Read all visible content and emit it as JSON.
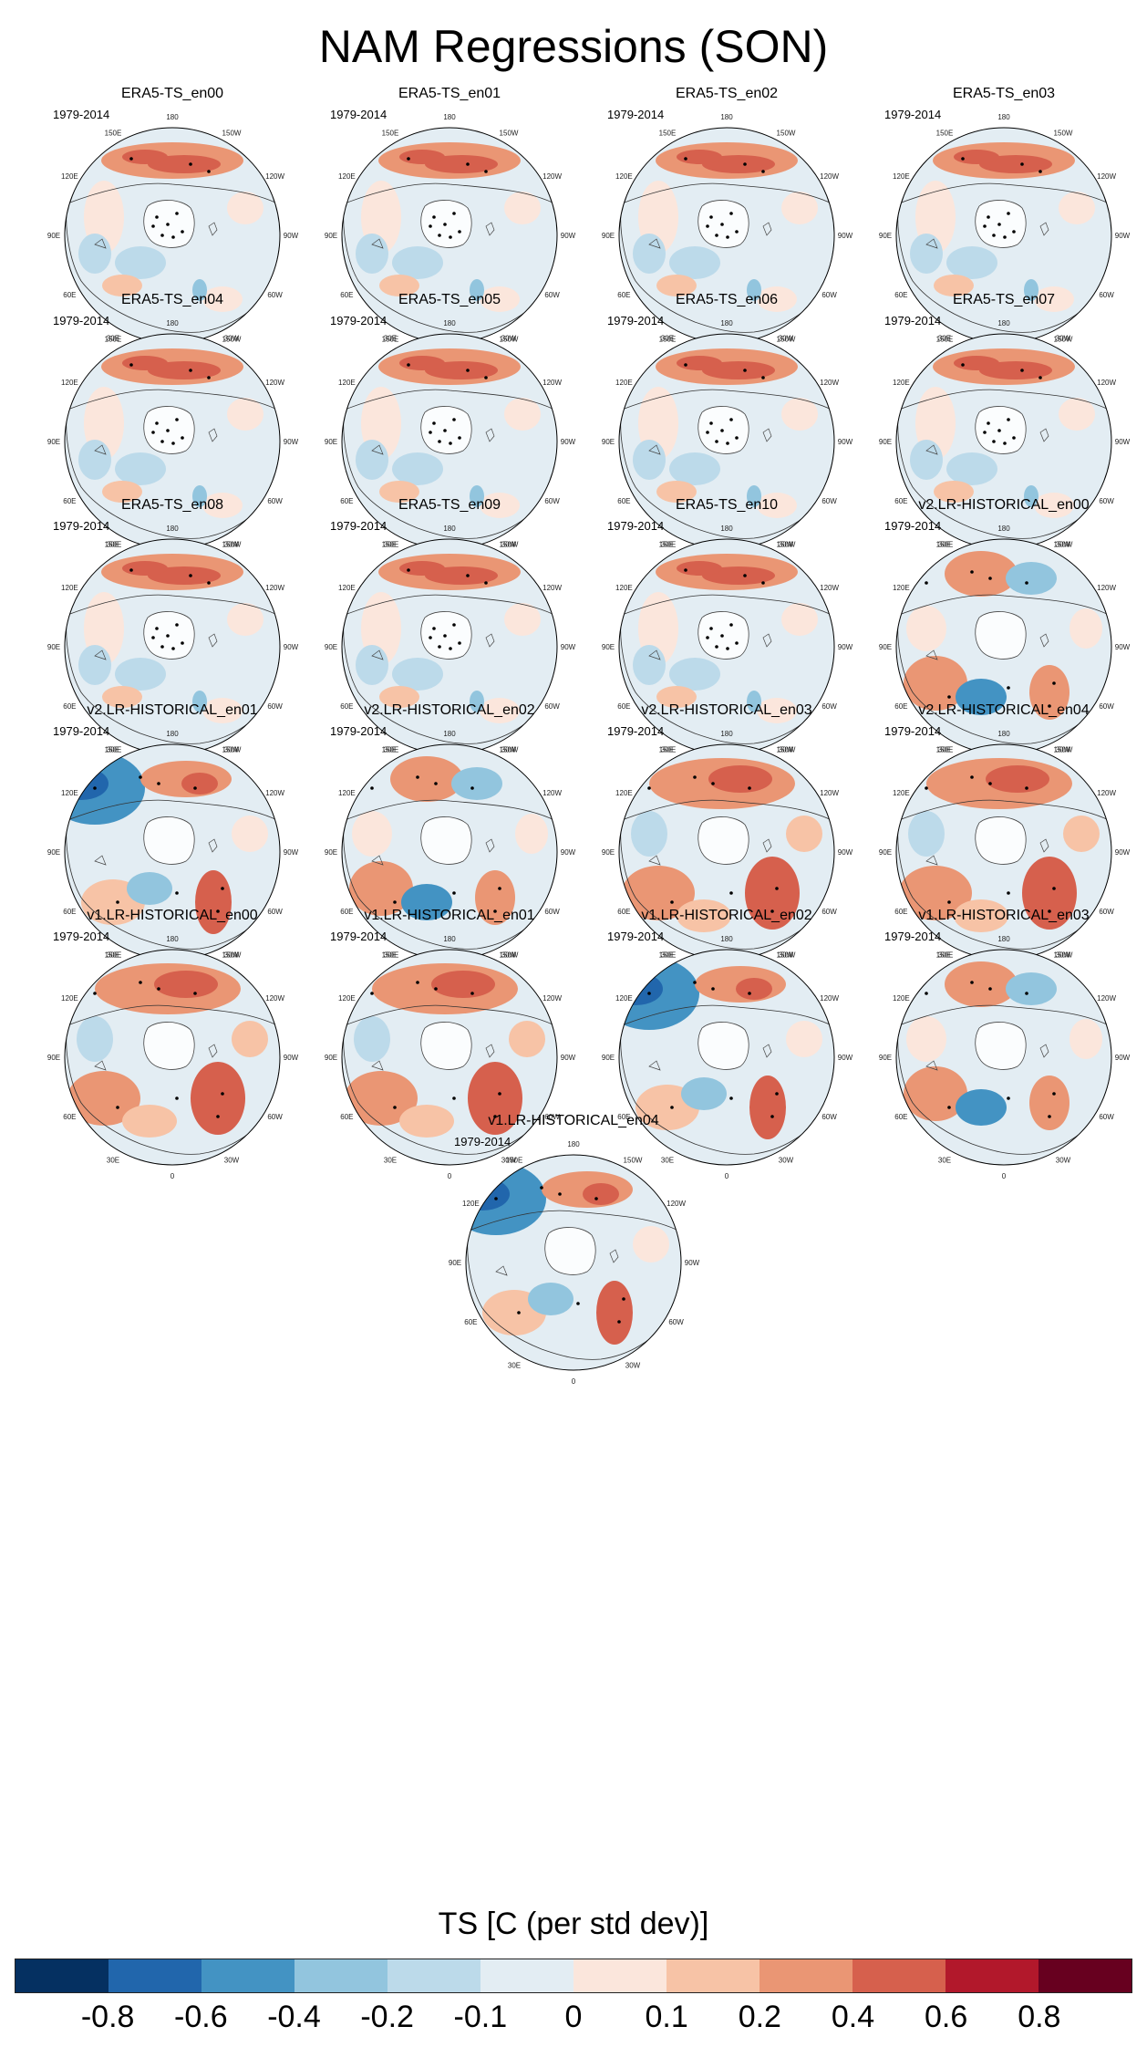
{
  "title": "NAM Regressions (SON)",
  "period": "1979-2014",
  "panels": [
    {
      "name": "ERA5-TS_en00",
      "style": "era"
    },
    {
      "name": "ERA5-TS_en01",
      "style": "era"
    },
    {
      "name": "ERA5-TS_en02",
      "style": "era"
    },
    {
      "name": "ERA5-TS_en03",
      "style": "era"
    },
    {
      "name": "ERA5-TS_en04",
      "style": "era"
    },
    {
      "name": "ERA5-TS_en05",
      "style": "era"
    },
    {
      "name": "ERA5-TS_en06",
      "style": "era"
    },
    {
      "name": "ERA5-TS_en07",
      "style": "era"
    },
    {
      "name": "ERA5-TS_en08",
      "style": "era"
    },
    {
      "name": "ERA5-TS_en09",
      "style": "era"
    },
    {
      "name": "ERA5-TS_en10",
      "style": "era"
    },
    {
      "name": "v2.LR-HISTORICAL_en00",
      "style": "model"
    },
    {
      "name": "v2.LR-HISTORICAL_en01",
      "style": "model-cold-west"
    },
    {
      "name": "v2.LR-HISTORICAL_en02",
      "style": "model"
    },
    {
      "name": "v2.LR-HISTORICAL_en03",
      "style": "model-warm"
    },
    {
      "name": "v2.LR-HISTORICAL_en04",
      "style": "model-warm"
    },
    {
      "name": "v1.LR-HISTORICAL_en00",
      "style": "model-warm"
    },
    {
      "name": "v1.LR-HISTORICAL_en01",
      "style": "model-warm"
    },
    {
      "name": "v1.LR-HISTORICAL_en02",
      "style": "model-cold-west"
    },
    {
      "name": "v1.LR-HISTORICAL_en03",
      "style": "model"
    },
    {
      "name": "v1.LR-HISTORICAL_en04",
      "style": "model-cold-west"
    }
  ],
  "lon_labels": [
    "180",
    "150E",
    "120E",
    "90E",
    "60E",
    "30E",
    "0",
    "30W",
    "60W",
    "90W",
    "120W",
    "150W"
  ],
  "colorbar": {
    "title": "TS [C (per std dev)]",
    "colors": [
      "#053061",
      "#2166ac",
      "#4393c3",
      "#92c5de",
      "#bcdaea",
      "#e3edf3",
      "#fbe6dc",
      "#f7c3a6",
      "#ea9674",
      "#d6604d",
      "#b2182b",
      "#67001f"
    ],
    "ticks": [
      "-0.8",
      "-0.6",
      "-0.4",
      "-0.2",
      "-0.1",
      "0",
      "0.1",
      "0.2",
      "0.4",
      "0.6",
      "0.8"
    ]
  }
}
